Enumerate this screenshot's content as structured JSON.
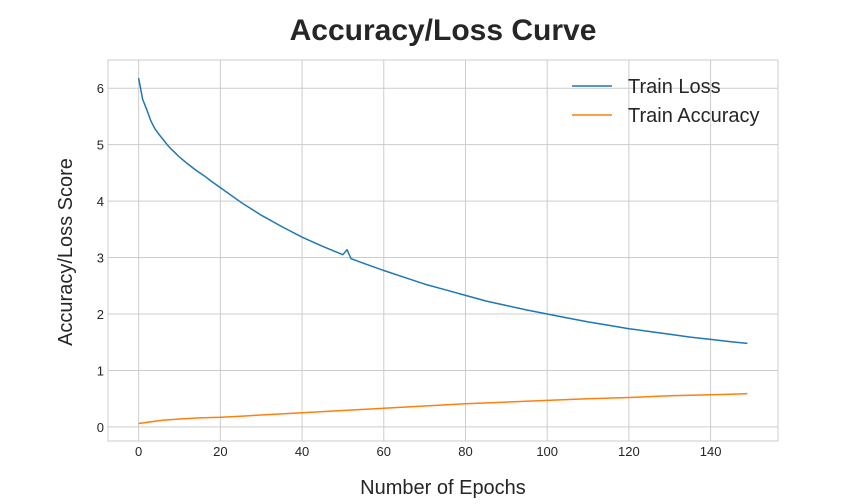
{
  "chart_data": {
    "type": "line",
    "title": "Accuracy/Loss Curve",
    "xlabel": "Number of Epochs",
    "ylabel": "Accuracy/Loss Score",
    "xlim": [
      -7.5,
      156.5
    ],
    "ylim": [
      -0.25,
      6.5
    ],
    "xticks": [
      0,
      20,
      40,
      60,
      80,
      100,
      120,
      140
    ],
    "yticks": [
      0,
      1,
      2,
      3,
      4,
      5,
      6
    ],
    "grid": true,
    "legend_position": "top-right",
    "series": [
      {
        "name": "Train Loss",
        "color": "#1f77b4",
        "x": [
          0,
          1,
          2,
          3,
          4,
          5,
          6,
          7,
          8,
          9,
          10,
          12,
          14,
          16,
          18,
          20,
          25,
          30,
          35,
          40,
          45,
          50,
          51,
          52,
          55,
          60,
          65,
          70,
          75,
          80,
          85,
          90,
          95,
          100,
          105,
          110,
          115,
          120,
          125,
          130,
          135,
          140,
          145,
          149
        ],
        "y": [
          6.18,
          5.8,
          5.62,
          5.42,
          5.28,
          5.18,
          5.09,
          5.0,
          4.92,
          4.85,
          4.78,
          4.66,
          4.55,
          4.45,
          4.34,
          4.24,
          3.98,
          3.75,
          3.55,
          3.36,
          3.2,
          3.05,
          3.14,
          2.98,
          2.9,
          2.77,
          2.65,
          2.53,
          2.43,
          2.33,
          2.23,
          2.15,
          2.07,
          2.0,
          1.93,
          1.86,
          1.8,
          1.74,
          1.69,
          1.64,
          1.59,
          1.55,
          1.51,
          1.48
        ]
      },
      {
        "name": "Train Accuracy",
        "color": "#ff7f0e",
        "x": [
          0,
          2,
          4,
          6,
          8,
          10,
          15,
          20,
          25,
          30,
          35,
          40,
          45,
          50,
          55,
          60,
          70,
          80,
          90,
          100,
          110,
          120,
          130,
          140,
          145,
          149
        ],
        "y": [
          0.06,
          0.08,
          0.1,
          0.12,
          0.13,
          0.14,
          0.16,
          0.17,
          0.19,
          0.21,
          0.23,
          0.25,
          0.27,
          0.29,
          0.31,
          0.33,
          0.37,
          0.41,
          0.44,
          0.47,
          0.5,
          0.52,
          0.55,
          0.57,
          0.58,
          0.59
        ]
      }
    ]
  }
}
